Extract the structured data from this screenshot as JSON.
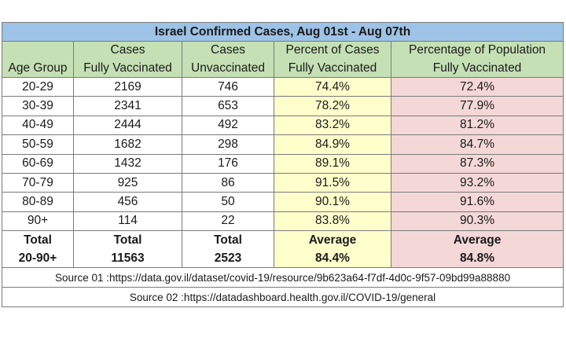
{
  "title": "Israel Confirmed Cases, Aug 01st  - Aug 07th",
  "header": {
    "col1_line1": "",
    "col1_line2": "Age Group",
    "col2_line1": "Cases",
    "col2_line2": "Fully Vaccinated",
    "col3_line1": "Cases",
    "col3_line2": "Unvaccinated",
    "col4_line1": "Percent of Cases",
    "col4_line2": "Fully Vaccinated",
    "col5_line1": "Percentage of Population",
    "col5_line2": "Fully Vaccinated"
  },
  "rows": [
    {
      "age": "20-29",
      "vacc": "2169",
      "unvacc": "746",
      "pct_cases": "74.4%",
      "pct_pop": "72.4%"
    },
    {
      "age": "30-39",
      "vacc": "2341",
      "unvacc": "653",
      "pct_cases": "78.2%",
      "pct_pop": "77.9%"
    },
    {
      "age": "40-49",
      "vacc": "2444",
      "unvacc": "492",
      "pct_cases": "83.2%",
      "pct_pop": "81.2%"
    },
    {
      "age": "50-59",
      "vacc": "1682",
      "unvacc": "298",
      "pct_cases": "84.9%",
      "pct_pop": "84.7%"
    },
    {
      "age": "60-69",
      "vacc": "1432",
      "unvacc": "176",
      "pct_cases": "89.1%",
      "pct_pop": "87.3%"
    },
    {
      "age": "70-79",
      "vacc": "925",
      "unvacc": "86",
      "pct_cases": "91.5%",
      "pct_pop": "93.2%"
    },
    {
      "age": "80-89",
      "vacc": "456",
      "unvacc": "50",
      "pct_cases": "90.1%",
      "pct_pop": "91.6%"
    },
    {
      "age": "90+",
      "vacc": "114",
      "unvacc": "22",
      "pct_cases": "83.8%",
      "pct_pop": "90.3%"
    }
  ],
  "totals": {
    "row1": {
      "age": "Total",
      "vacc": "Total",
      "unvacc": "Total",
      "pct_cases": "Average",
      "pct_pop": "Average"
    },
    "row2": {
      "age": "20-90+",
      "vacc": "11563",
      "unvacc": "2523",
      "pct_cases": "84.4%",
      "pct_pop": "84.8%"
    }
  },
  "sources": {
    "source1": "Source 01 :https://data.gov.il/dataset/covid-19/resource/9b623a64-f7df-4d0c-9f57-09bd99a88880",
    "source2": "Source 02 :https://datadashboard.health.gov.il/COVID-19/general"
  },
  "colors": {
    "title_bg": "#9dc3e6",
    "header_bg": "#c5e0b4",
    "pct_cases_bg": "#ffffcc",
    "pct_pop_bg": "#f4d7d7"
  }
}
